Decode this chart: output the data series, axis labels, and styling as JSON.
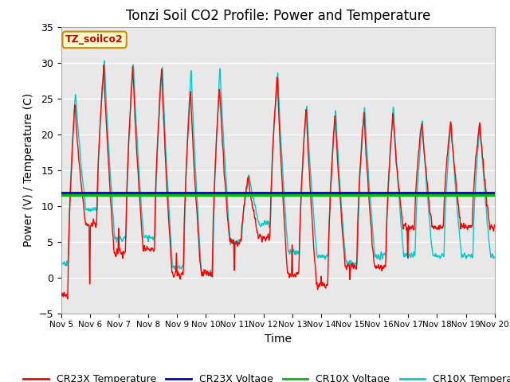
{
  "title": "Tonzi Soil CO2 Profile: Power and Temperature",
  "xlabel": "Time",
  "ylabel": "Power (V) / Temperature (C)",
  "ylim": [
    -5,
    35
  ],
  "xlim": [
    0,
    15
  ],
  "yticks": [
    -5,
    0,
    5,
    10,
    15,
    20,
    25,
    30,
    35
  ],
  "xtick_labels": [
    "Nov 5",
    "Nov 6",
    "Nov 7",
    "Nov 8",
    "Nov 9",
    "Nov 10",
    "Nov 11",
    "Nov 12",
    "Nov 13",
    "Nov 14",
    "Nov 15",
    "Nov 16",
    "Nov 17",
    "Nov 18",
    "Nov 19",
    "Nov 20"
  ],
  "cr23x_voltage_value": 11.8,
  "cr10x_voltage_value": 11.5,
  "annotation_text": "TZ_soilco2",
  "annotation_bg": "#FFFFCC",
  "annotation_border": "#CC8800",
  "plot_bg": "#E8E8E8",
  "cr23x_temp_color": "#FF0000",
  "cr23x_voltage_color": "#0000CC",
  "cr10x_voltage_color": "#00BB00",
  "cr10x_temp_color": "#00CCCC",
  "title_fontsize": 12,
  "axis_fontsize": 10,
  "legend_fontsize": 9,
  "peak_heights_cr10x": [
    26,
    30.5,
    30.3,
    30.0,
    29.5,
    29.5,
    14.5,
    28.8,
    24.3,
    23.8,
    24.0,
    24.0,
    22.0
  ],
  "peak_heights_cr23x": [
    24.5,
    29.5,
    29.5,
    29.5,
    26.5,
    27.0,
    14.0,
    28.5,
    24.0,
    23.0,
    23.5,
    23.0,
    22.0
  ],
  "trough_cr10x": [
    2.0,
    9.5,
    5.5,
    5.5,
    1.5,
    0.5,
    5.0,
    7.5,
    3.5,
    3.0,
    2.0,
    3.0,
    3.0
  ],
  "trough_cr23x": [
    -2.5,
    7.5,
    3.5,
    4.0,
    0.5,
    0.5,
    5.0,
    5.5,
    0.5,
    -1.0,
    1.5,
    1.5,
    7.0
  ]
}
